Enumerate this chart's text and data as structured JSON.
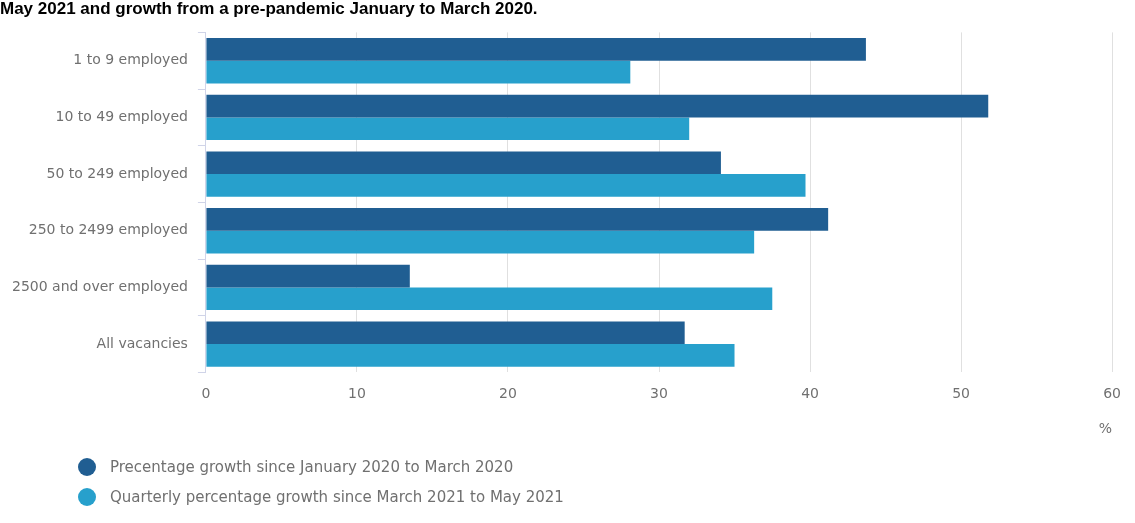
{
  "chart_data": {
    "type": "bar",
    "orientation": "horizontal",
    "title": "May 2021 and growth from a pre-pandemic January to March 2020.",
    "xlabel": "%",
    "categories": [
      "1 to 9 employed",
      "10 to 49 employed",
      "50 to 249 employed",
      "250 to 2499 employed",
      "2500 and over employed",
      "All vacancies"
    ],
    "series": [
      {
        "name": "Precentage growth since January 2020 to March 2020",
        "color": "#205e92",
        "values": [
          43.7,
          51.8,
          34.1,
          41.2,
          13.5,
          31.7
        ]
      },
      {
        "name": "Quarterly percentage growth since March 2021 to May 2021",
        "color": "#27a0cc",
        "values": [
          28.1,
          32.0,
          39.7,
          36.3,
          37.5,
          35.0
        ]
      }
    ],
    "xlim": [
      0,
      60
    ],
    "xticks": [
      0,
      10,
      20,
      30,
      40,
      50,
      60
    ],
    "grid": "x",
    "legend": "bottom left",
    "marker": "circle"
  }
}
